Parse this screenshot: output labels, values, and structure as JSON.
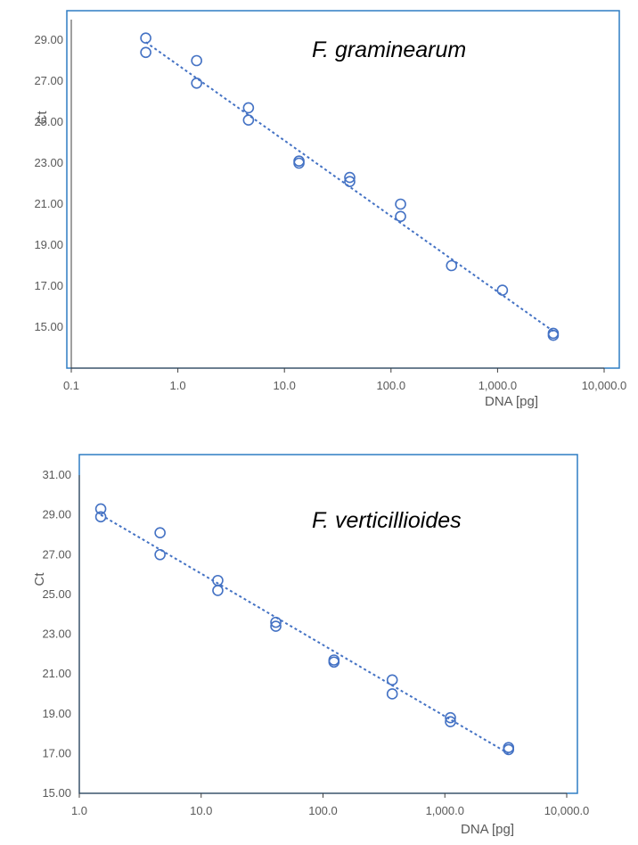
{
  "colors": {
    "frame": "#2e7dc4",
    "series": "#4472c4",
    "text": "#595959",
    "axis": "#404040"
  },
  "chart_data": [
    {
      "type": "scatter",
      "title": "F. graminearum",
      "xlabel": "DNA [pg]",
      "ylabel": "Ct",
      "xscale": "log",
      "xlim": [
        0.1,
        10000
      ],
      "ylim": [
        13,
        30
      ],
      "xticks": [
        0.1,
        1,
        10,
        100,
        1000,
        10000
      ],
      "xtick_labels": [
        "0.1",
        "1.0",
        "10.0",
        "100.0",
        "1,000.0",
        "10,000.0"
      ],
      "yticks": [
        15,
        17,
        19,
        21,
        23,
        25,
        27,
        29
      ],
      "ytick_labels": [
        "15.00",
        "17.00",
        "19.00",
        "21.00",
        "23.00",
        "25.00",
        "27.00",
        "29.00"
      ],
      "grid": false,
      "legend": "none",
      "series": [
        {
          "x": [
            0.5,
            0.5,
            1.5,
            1.5,
            4.6,
            4.6,
            13.7,
            13.7,
            41,
            41,
            123,
            123,
            370,
            1111,
            3333,
            3333
          ],
          "y": [
            29.1,
            28.4,
            28.0,
            26.9,
            25.7,
            25.1,
            23.1,
            23.0,
            22.3,
            22.1,
            21.0,
            20.4,
            18.0,
            16.8,
            14.7,
            14.6
          ]
        }
      ],
      "trendline": {
        "type": "linear-log",
        "x": [
          0.5,
          3333
        ],
        "y": [
          28.9,
          14.8
        ]
      }
    },
    {
      "type": "scatter",
      "title": "F. verticillioides",
      "xlabel": "DNA [pg]",
      "ylabel": "Ct",
      "xscale": "log",
      "xlim": [
        1,
        10000
      ],
      "ylim": [
        15,
        31
      ],
      "xticks": [
        1,
        10,
        100,
        1000,
        10000
      ],
      "xtick_labels": [
        "1.0",
        "10.0",
        "100.0",
        "1,000.0",
        "10,000.0"
      ],
      "yticks": [
        15,
        17,
        19,
        21,
        23,
        25,
        27,
        29,
        31
      ],
      "ytick_labels": [
        "15.00",
        "17.00",
        "19.00",
        "21.00",
        "23.00",
        "25.00",
        "27.00",
        "29.00",
        "31.00"
      ],
      "grid": false,
      "legend": "none",
      "series": [
        {
          "x": [
            1.5,
            1.5,
            4.6,
            4.6,
            13.7,
            13.7,
            41,
            41,
            123,
            123,
            370,
            370,
            1111,
            1111,
            3333,
            3333
          ],
          "y": [
            29.3,
            28.9,
            28.1,
            27.0,
            25.7,
            25.2,
            23.6,
            23.4,
            21.7,
            21.6,
            20.7,
            20.0,
            18.8,
            18.6,
            17.3,
            17.2
          ]
        }
      ],
      "trendline": {
        "type": "linear-log",
        "x": [
          1.5,
          3333
        ],
        "y": [
          29.0,
          17.0
        ]
      }
    }
  ]
}
